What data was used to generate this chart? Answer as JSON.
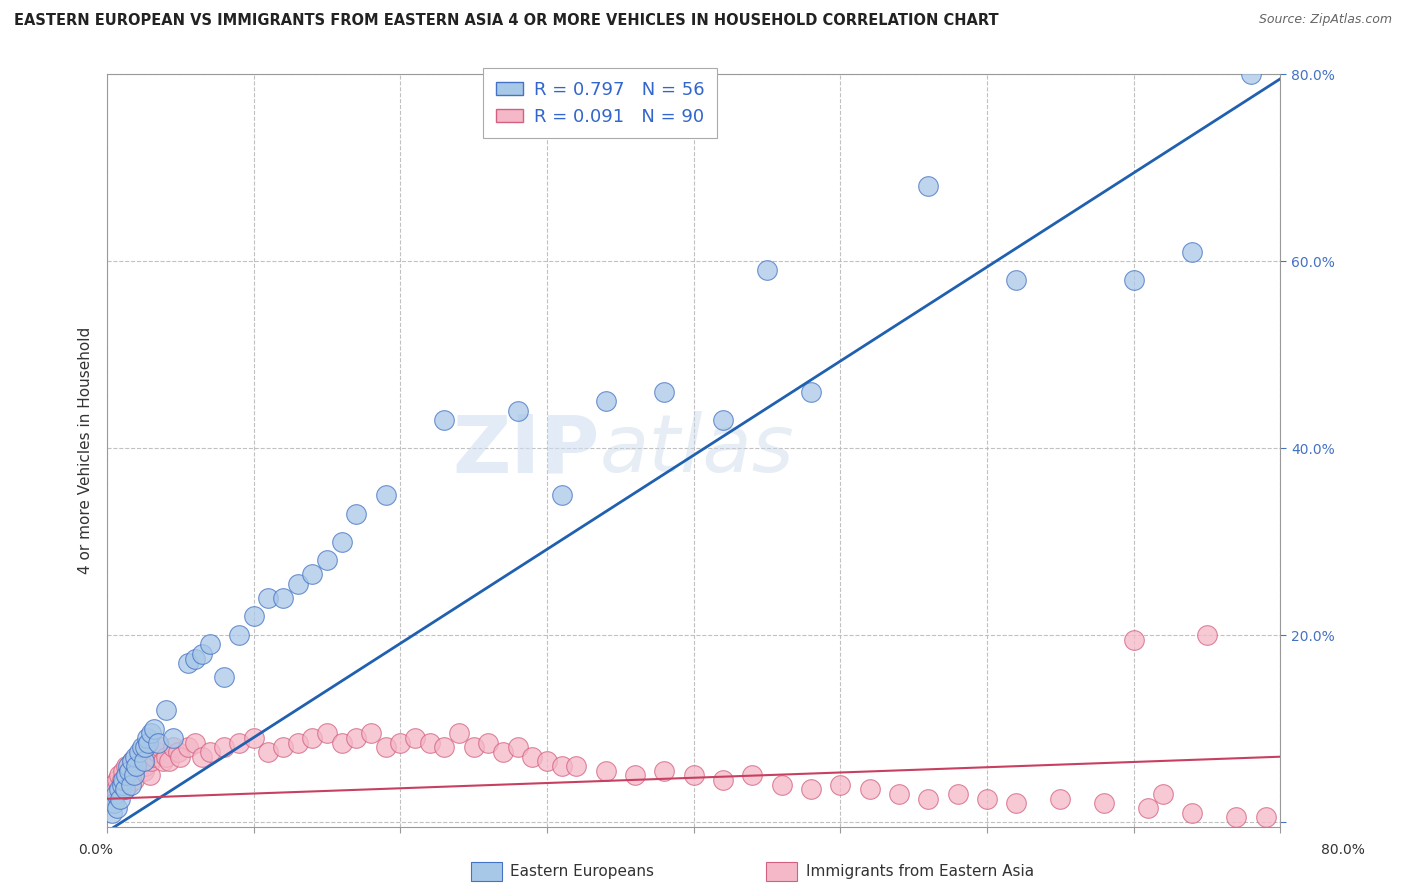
{
  "title": "EASTERN EUROPEAN VS IMMIGRANTS FROM EASTERN ASIA 4 OR MORE VEHICLES IN HOUSEHOLD CORRELATION CHART",
  "source": "Source: ZipAtlas.com",
  "ylabel": "4 or more Vehicles in Household",
  "legend_label1": "Eastern Europeans",
  "legend_label2": "Immigrants from Eastern Asia",
  "R1": "R = 0.797",
  "N1": "N = 56",
  "R2": "R = 0.091",
  "N2": "N = 90",
  "color1": "#a8c8e8",
  "color2": "#f4b8c8",
  "edge_color1": "#4472c4",
  "edge_color2": "#d46080",
  "line_color1": "#2060b0",
  "line_color2": "#c84060",
  "watermark": "ZIPatlas",
  "xlim": [
    0.0,
    0.8
  ],
  "ylim": [
    -0.005,
    0.8
  ],
  "blue_line_x": [
    0.0,
    0.8
  ],
  "blue_line_y": [
    -0.01,
    0.795
  ],
  "pink_line_x": [
    0.0,
    0.8
  ],
  "pink_line_y": [
    0.025,
    0.07
  ],
  "blue_x": [
    0.003,
    0.005,
    0.006,
    0.007,
    0.008,
    0.009,
    0.01,
    0.011,
    0.012,
    0.013,
    0.014,
    0.015,
    0.016,
    0.017,
    0.018,
    0.019,
    0.02,
    0.022,
    0.024,
    0.025,
    0.026,
    0.027,
    0.028,
    0.03,
    0.032,
    0.035,
    0.04,
    0.045,
    0.055,
    0.06,
    0.065,
    0.07,
    0.08,
    0.09,
    0.1,
    0.11,
    0.12,
    0.13,
    0.14,
    0.15,
    0.16,
    0.17,
    0.19,
    0.23,
    0.28,
    0.31,
    0.34,
    0.38,
    0.42,
    0.45,
    0.48,
    0.56,
    0.62,
    0.7,
    0.74,
    0.78
  ],
  "blue_y": [
    0.01,
    0.02,
    0.03,
    0.015,
    0.035,
    0.025,
    0.04,
    0.045,
    0.035,
    0.05,
    0.06,
    0.055,
    0.04,
    0.065,
    0.05,
    0.07,
    0.06,
    0.075,
    0.08,
    0.065,
    0.08,
    0.09,
    0.085,
    0.095,
    0.1,
    0.085,
    0.12,
    0.09,
    0.17,
    0.175,
    0.18,
    0.19,
    0.155,
    0.2,
    0.22,
    0.24,
    0.24,
    0.255,
    0.265,
    0.28,
    0.3,
    0.33,
    0.35,
    0.43,
    0.44,
    0.35,
    0.45,
    0.46,
    0.43,
    0.59,
    0.46,
    0.68,
    0.58,
    0.58,
    0.61,
    0.8
  ],
  "pink_x": [
    0.003,
    0.004,
    0.005,
    0.006,
    0.007,
    0.008,
    0.009,
    0.01,
    0.011,
    0.012,
    0.013,
    0.014,
    0.015,
    0.016,
    0.017,
    0.018,
    0.019,
    0.02,
    0.021,
    0.022,
    0.023,
    0.024,
    0.025,
    0.026,
    0.027,
    0.028,
    0.029,
    0.03,
    0.032,
    0.034,
    0.036,
    0.038,
    0.04,
    0.042,
    0.045,
    0.048,
    0.05,
    0.055,
    0.06,
    0.065,
    0.07,
    0.08,
    0.09,
    0.1,
    0.11,
    0.12,
    0.13,
    0.14,
    0.15,
    0.16,
    0.17,
    0.18,
    0.19,
    0.2,
    0.21,
    0.22,
    0.23,
    0.24,
    0.25,
    0.26,
    0.27,
    0.28,
    0.29,
    0.3,
    0.31,
    0.32,
    0.34,
    0.36,
    0.38,
    0.4,
    0.42,
    0.44,
    0.46,
    0.48,
    0.5,
    0.52,
    0.54,
    0.56,
    0.58,
    0.6,
    0.62,
    0.65,
    0.68,
    0.71,
    0.74,
    0.77,
    0.79,
    0.7,
    0.72,
    0.75
  ],
  "pink_y": [
    0.03,
    0.04,
    0.03,
    0.035,
    0.045,
    0.05,
    0.035,
    0.045,
    0.055,
    0.035,
    0.06,
    0.04,
    0.055,
    0.05,
    0.065,
    0.045,
    0.06,
    0.055,
    0.065,
    0.07,
    0.06,
    0.075,
    0.055,
    0.06,
    0.07,
    0.075,
    0.05,
    0.065,
    0.07,
    0.075,
    0.08,
    0.065,
    0.07,
    0.065,
    0.08,
    0.075,
    0.07,
    0.08,
    0.085,
    0.07,
    0.075,
    0.08,
    0.085,
    0.09,
    0.075,
    0.08,
    0.085,
    0.09,
    0.095,
    0.085,
    0.09,
    0.095,
    0.08,
    0.085,
    0.09,
    0.085,
    0.08,
    0.095,
    0.08,
    0.085,
    0.075,
    0.08,
    0.07,
    0.065,
    0.06,
    0.06,
    0.055,
    0.05,
    0.055,
    0.05,
    0.045,
    0.05,
    0.04,
    0.035,
    0.04,
    0.035,
    0.03,
    0.025,
    0.03,
    0.025,
    0.02,
    0.025,
    0.02,
    0.015,
    0.01,
    0.005,
    0.005,
    0.195,
    0.03,
    0.2
  ]
}
